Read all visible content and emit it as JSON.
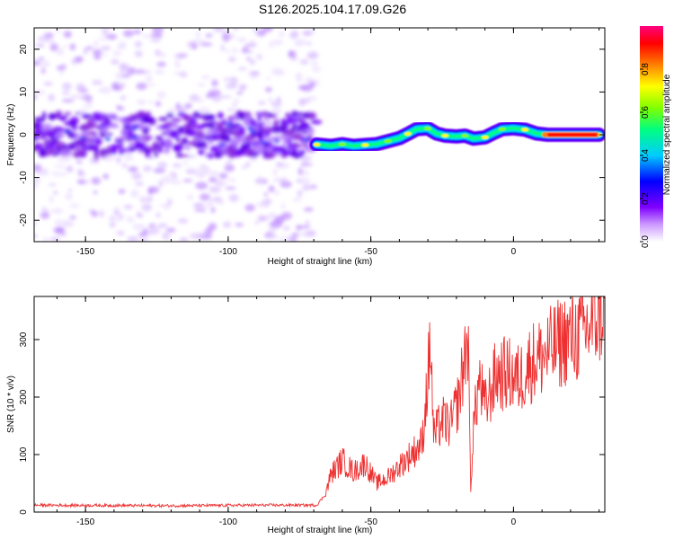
{
  "title": "S126.2025.104.17.09.G26",
  "chart_data": [
    {
      "type": "heatmap",
      "title": "S126.2025.104.17.09.G26",
      "xlabel": "Height of straight line (km)",
      "ylabel": "Frequency (Hz)",
      "xlim": [
        -168,
        32
      ],
      "ylim": [
        -25,
        25
      ],
      "xticks": [
        -150,
        -100,
        -50,
        0
      ],
      "yticks": [
        -20,
        -10,
        0,
        10,
        20
      ],
      "xtick_labels": [
        "-150",
        "-100",
        "-50",
        "0"
      ],
      "ytick_labels": [
        "-20",
        "-10",
        "0",
        "10",
        "20"
      ],
      "noise_region_x": [
        -168,
        -69
      ],
      "ridge_trace": [
        {
          "x": -69,
          "f": -2.3
        },
        {
          "x": -64,
          "f": -2.6
        },
        {
          "x": -60,
          "f": -2.2
        },
        {
          "x": -56,
          "f": -2.6
        },
        {
          "x": -52,
          "f": -2.4
        },
        {
          "x": -48,
          "f": -2.2
        },
        {
          "x": -44,
          "f": -1.5
        },
        {
          "x": -40,
          "f": -0.8
        },
        {
          "x": -37,
          "f": 0.2
        },
        {
          "x": -34,
          "f": 1.3
        },
        {
          "x": -30,
          "f": 1.5
        },
        {
          "x": -27,
          "f": 0.3
        },
        {
          "x": -24,
          "f": -0.2
        },
        {
          "x": -20,
          "f": -0.4
        },
        {
          "x": -17,
          "f": -0.2
        },
        {
          "x": -14,
          "f": -0.9
        },
        {
          "x": -10,
          "f": -0.6
        },
        {
          "x": -7,
          "f": 0.4
        },
        {
          "x": -4,
          "f": 1.3
        },
        {
          "x": 0,
          "f": 1.5
        },
        {
          "x": 4,
          "f": 1.2
        },
        {
          "x": 8,
          "f": 0.3
        },
        {
          "x": 12,
          "f": 0.0
        },
        {
          "x": 20,
          "f": 0.0
        },
        {
          "x": 30,
          "f": 0.0
        }
      ],
      "colorbar": {
        "label": "Normalized spectral amplitude",
        "range": [
          0,
          1
        ],
        "ticks": [
          0.0,
          0.2,
          0.4,
          0.6,
          0.8
        ],
        "tick_labels": [
          "0.0",
          "0.2",
          "0.4",
          "0.6",
          "0.8"
        ],
        "colors": [
          "#ffffff",
          "#cc99ff",
          "#7f00ff",
          "#0000ff",
          "#00ccff",
          "#00ff80",
          "#80ff00",
          "#ffff00",
          "#ff8000",
          "#ff0000",
          "#ff0080"
        ]
      }
    },
    {
      "type": "line",
      "xlabel": "Height of straight line (km)",
      "ylabel": "SNR (10 * v/v)",
      "xlim": [
        -168,
        32
      ],
      "ylim": [
        0,
        375
      ],
      "xticks": [
        -150,
        -100,
        -50,
        0
      ],
      "yticks": [
        0,
        100,
        200,
        300
      ],
      "xtick_labels": [
        "-150",
        "-100",
        "-50",
        "0"
      ],
      "ytick_labels": [
        "0",
        "100",
        "200",
        "300"
      ],
      "series": [
        {
          "name": "SNR",
          "color": "#ee3030",
          "x": [
            -168,
            -120,
            -90,
            -69,
            -66,
            -64,
            -60,
            -56,
            -52,
            -48,
            -44,
            -40,
            -36,
            -32,
            -29,
            -28,
            -25,
            -22,
            -19,
            -16,
            -15,
            -14,
            -12,
            -10,
            -6,
            -2,
            2,
            6,
            10,
            14,
            18,
            22,
            26,
            30,
            32
          ],
          "y": [
            12,
            11,
            12,
            12,
            30,
            65,
            90,
            70,
            85,
            50,
            60,
            80,
            100,
            120,
            295,
            130,
            160,
            150,
            200,
            310,
            40,
            150,
            230,
            180,
            240,
            240,
            230,
            260,
            270,
            285,
            300,
            305,
            320,
            345,
            360
          ]
        }
      ]
    }
  ]
}
